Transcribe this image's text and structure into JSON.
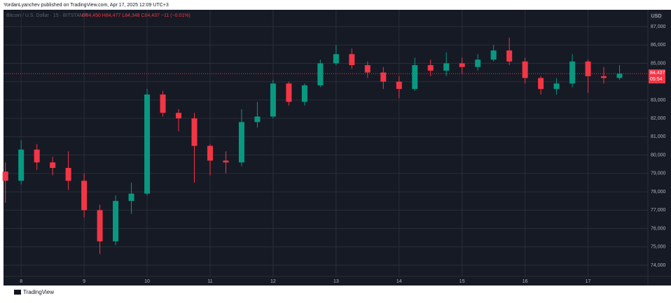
{
  "header": {
    "publisher": "YordanLyanchev published on TradingView.com, Apr 17, 2025 12:09 UTC+3",
    "footer": "TradingView"
  },
  "chart_data": {
    "type": "candlestick",
    "symbol": "Bitcoin / U.S. Dollar · 15 · BITSTAMP",
    "ohlc": "O84,450 H84,477 L84,348 C84,437 −11 (−0.01%)",
    "currency": "USD",
    "last_price": {
      "value": 84437,
      "label": "84,437"
    },
    "countdown": "05:54",
    "up_color": "#089981",
    "down_color": "#f23645",
    "x": [
      7.75,
      8,
      8.25,
      8.5,
      8.75,
      9,
      9.25,
      9.5,
      9.75,
      10,
      10.25,
      10.5,
      10.75,
      11,
      11.25,
      11.5,
      11.75,
      12,
      12.25,
      12.5,
      12.75,
      13,
      13.25,
      13.5,
      13.75,
      14,
      14.25,
      14.5,
      14.75,
      15,
      15.25,
      15.5,
      15.75,
      16,
      16.25,
      16.5,
      16.75,
      17,
      17.25,
      17.5
    ],
    "open": [
      79100,
      78600,
      80300,
      79600,
      79300,
      78600,
      77000,
      75300,
      77500,
      77900,
      83300,
      82300,
      82000,
      80500,
      79700,
      79600,
      81800,
      82100,
      83900,
      82900,
      83800,
      85000,
      85500,
      84900,
      84500,
      84000,
      83600,
      84900,
      84600,
      85000,
      84800,
      85200,
      85700,
      85100,
      84200,
      83600,
      83900,
      85100,
      84300,
      84200
    ],
    "high": [
      79600,
      80800,
      80600,
      79900,
      80200,
      79000,
      77300,
      77800,
      78500,
      83600,
      83500,
      82500,
      82300,
      80600,
      80200,
      82500,
      82900,
      84100,
      84000,
      83900,
      85200,
      86000,
      85800,
      85100,
      84800,
      84300,
      85300,
      85200,
      85600,
      85300,
      85500,
      86000,
      86400,
      85300,
      84300,
      84200,
      85500,
      85200,
      84800,
      84900
    ],
    "low": [
      77400,
      78400,
      79200,
      78900,
      78100,
      76600,
      74600,
      75100,
      76800,
      77800,
      82100,
      81300,
      78500,
      78900,
      79000,
      79400,
      81500,
      82000,
      82700,
      82700,
      83700,
      84900,
      84700,
      84200,
      83600,
      83100,
      83500,
      84300,
      84300,
      84400,
      84600,
      85100,
      84900,
      83900,
      83300,
      83300,
      83700,
      83400,
      83900,
      84100
    ],
    "close": [
      78600,
      80300,
      79600,
      79300,
      78600,
      77000,
      75300,
      77500,
      77900,
      83300,
      82300,
      82000,
      80500,
      79700,
      79600,
      81800,
      82100,
      83900,
      82900,
      83800,
      85000,
      85500,
      84900,
      84500,
      84000,
      83600,
      84900,
      84600,
      85000,
      84800,
      85200,
      85700,
      85100,
      84200,
      83600,
      83900,
      85100,
      84300,
      84200,
      84437
    ],
    "xlim": [
      7.72,
      17.95
    ],
    "xticks": [
      8,
      9,
      10,
      11,
      12,
      13,
      14,
      15,
      16,
      17
    ],
    "ylim": [
      73390,
      87915
    ],
    "yticks": [
      {
        "value": 74000,
        "label": "74,000"
      },
      {
        "value": 75000,
        "label": "75,000"
      },
      {
        "value": 76000,
        "label": "76,000"
      },
      {
        "value": 77000,
        "label": "77,000"
      },
      {
        "value": 78000,
        "label": "78,000"
      },
      {
        "value": 79000,
        "label": "79,000"
      },
      {
        "value": 80000,
        "label": "80,000"
      },
      {
        "value": 81000,
        "label": "81,000"
      },
      {
        "value": 82000,
        "label": "82,000"
      },
      {
        "value": 83000,
        "label": "83,000"
      },
      {
        "value": 84000,
        "label": "84,000"
      },
      {
        "value": 85000,
        "label": "85,000"
      },
      {
        "value": 86000,
        "label": "86,000"
      },
      {
        "value": 87000,
        "label": "87,000"
      }
    ],
    "grid": true
  }
}
